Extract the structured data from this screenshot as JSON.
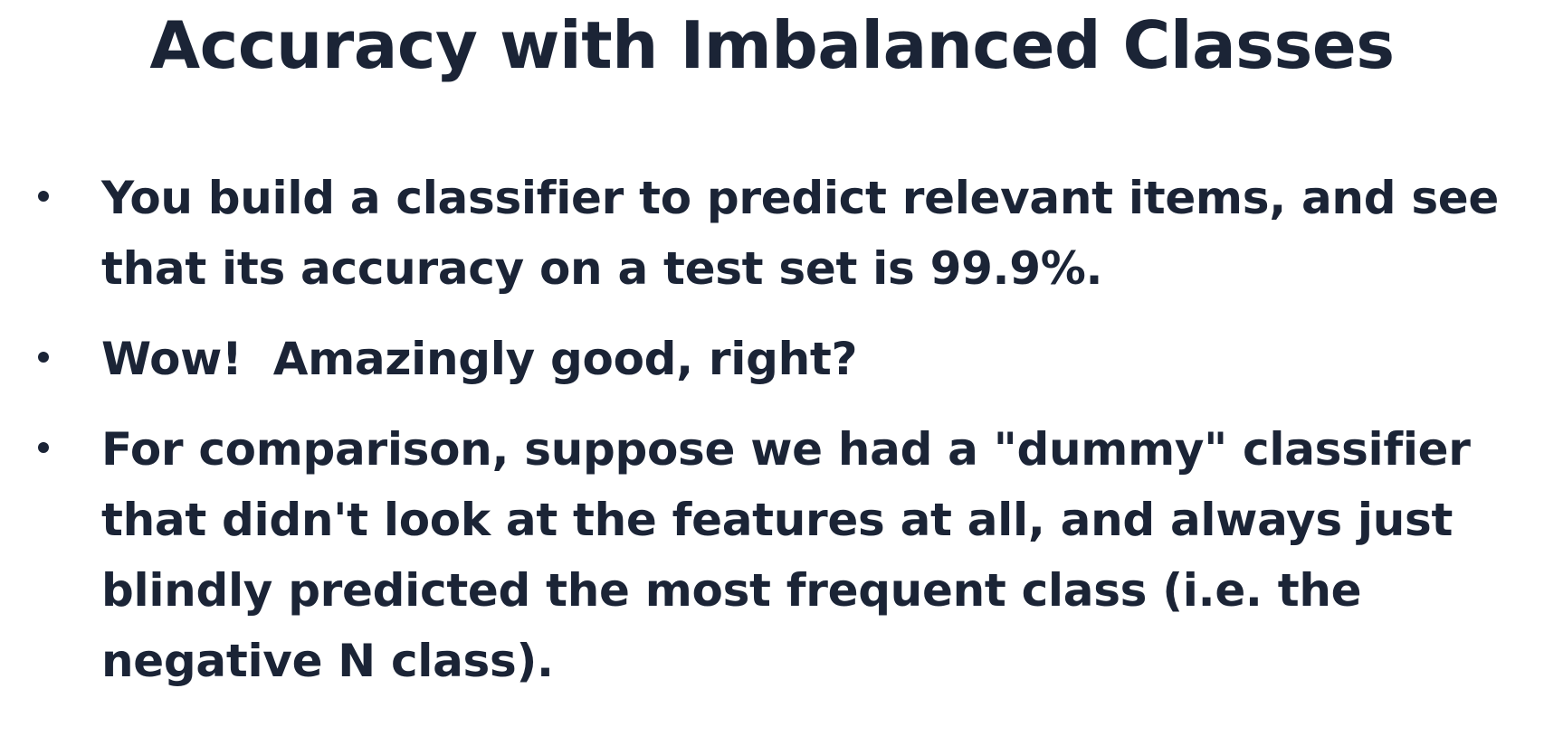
{
  "slide": {
    "title": "Accuracy with Imbalanced Classes",
    "bullets": [
      {
        "lines": [
          "You build a classifier to predict relevant items, and see",
          "that its accuracy on a test set is 99.9%."
        ]
      },
      {
        "lines": [
          "Wow!  Amazingly good, right?"
        ]
      },
      {
        "lines": [
          "For comparison, suppose we had a \"dummy\" classifier",
          "that didn't look at the features at all, and always just",
          "blindly predicted the most frequent class (i.e. the",
          "negative N class)."
        ]
      }
    ]
  },
  "colors": {
    "text": "#1b2436",
    "background": "#ffffff"
  }
}
